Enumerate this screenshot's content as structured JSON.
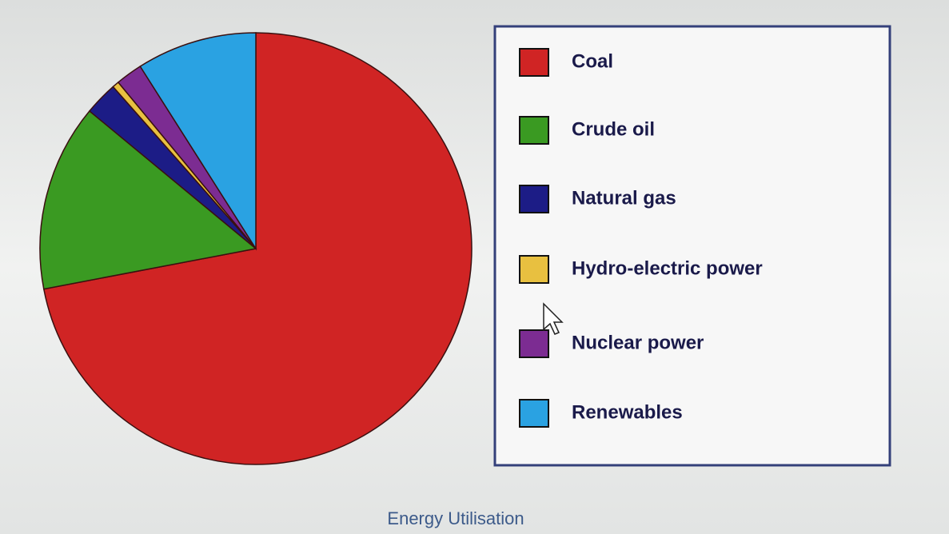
{
  "chart_data": {
    "type": "pie",
    "title": "Energy Utilisation",
    "categories": [
      "Coal",
      "Crude oil",
      "Natural gas",
      "Hydro-electric power",
      "Nuclear power",
      "Renewables"
    ],
    "values": [
      72,
      14,
      2.5,
      0.5,
      2,
      9
    ],
    "colors": [
      "#d02424",
      "#3a9a22",
      "#1c1c86",
      "#e8c040",
      "#7c2c92",
      "#2aa2e2"
    ],
    "legend": "right"
  }
}
